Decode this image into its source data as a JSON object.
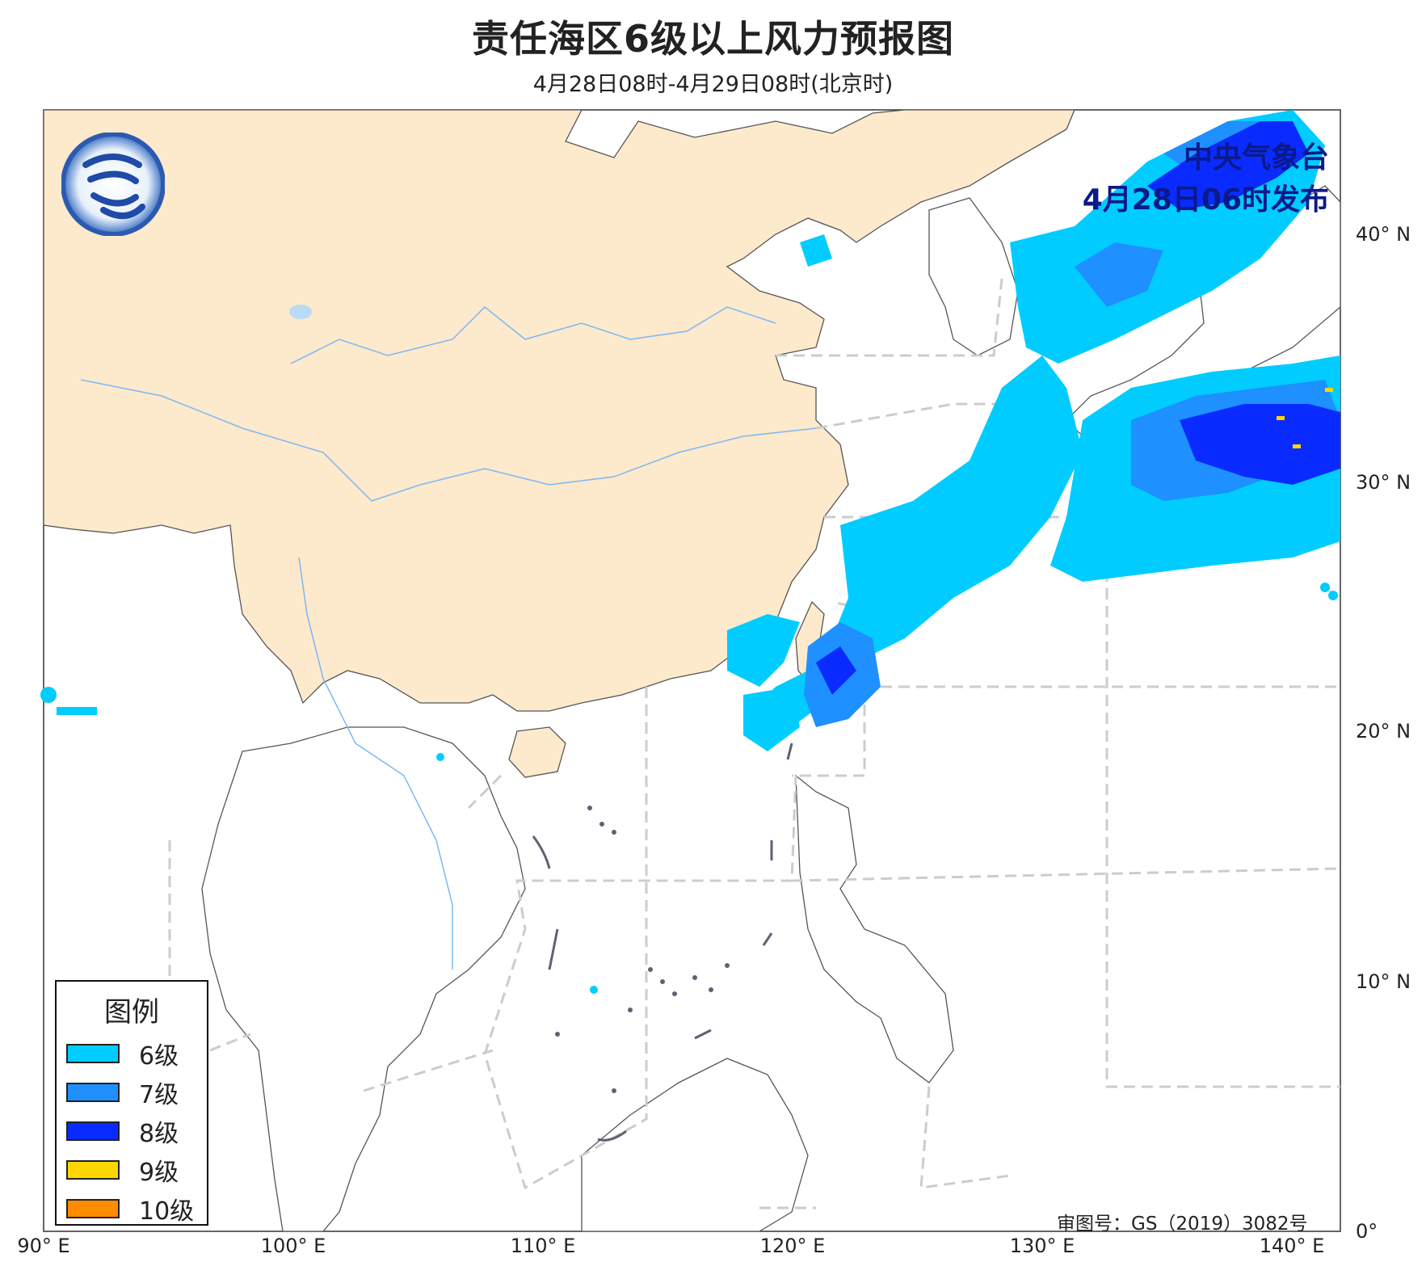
{
  "title": "责任海区6级以上风力预报图",
  "subtitle": "4月28日08时-4月29日08时(北京时)",
  "publisher": {
    "agency": "中央气象台",
    "issued": "4月28日06时发布"
  },
  "approval_number": "审图号：GS（2019）3082号",
  "axes": {
    "x_ticks": [
      "90° E",
      "100° E",
      "110° E",
      "120° E",
      "130° E",
      "140° E"
    ],
    "y_ticks": [
      "40° N",
      "30° N",
      "20° N",
      "10° N",
      "0°"
    ]
  },
  "legend": {
    "title": "图例",
    "items": [
      {
        "label": "6级",
        "color": "#00ccff"
      },
      {
        "label": "7级",
        "color": "#1e90ff"
      },
      {
        "label": "8级",
        "color": "#0a2bff"
      },
      {
        "label": "9级",
        "color": "#ffd700"
      },
      {
        "label": "10级",
        "color": "#ff8c00"
      }
    ]
  },
  "colors": {
    "land_china": "#fde9cc",
    "land_other": "#ffffff",
    "boundary": "#555555",
    "river": "#7ab8f5",
    "sea_zone_line": "#cccccc"
  },
  "logo_icon": "cma-logo-icon"
}
